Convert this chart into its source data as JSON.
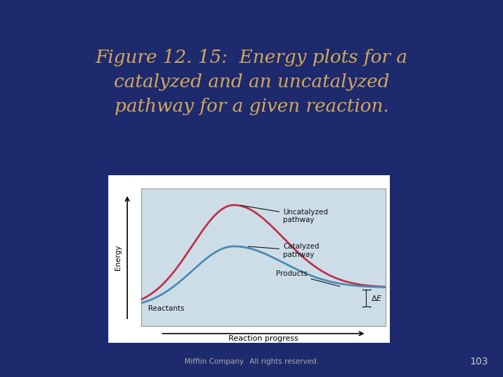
{
  "bg_color": "#1e2a6e",
  "title_lines": [
    "Figure 12. 15:  Energy plots for a",
    "catalyzed and an uncatalyzed",
    "pathway for a given reaction."
  ],
  "title_color": "#d4a855",
  "title_fontsize": 19,
  "chart_bg": "#ccdde8",
  "chart_outer_bg": "#ffffff",
  "uncatalyzed_color": "#c0304a",
  "catalyzed_color": "#4a8ab5",
  "footer_text": "Mifflin Company.  All rights reserved.",
  "footer_color": "#aaaaaa",
  "page_number": "103",
  "page_color": "#cccccc",
  "annotation_color": "#111111",
  "energy_label": "Energy",
  "rxn_label": "Reaction progress",
  "reactants_label": "Reactants",
  "products_label": "Products",
  "uncatalyzed_label": "Uncatalyzed\npathway",
  "catalyzed_label": "Catalyzed\npathway",
  "delta_e_label": "ΔE"
}
